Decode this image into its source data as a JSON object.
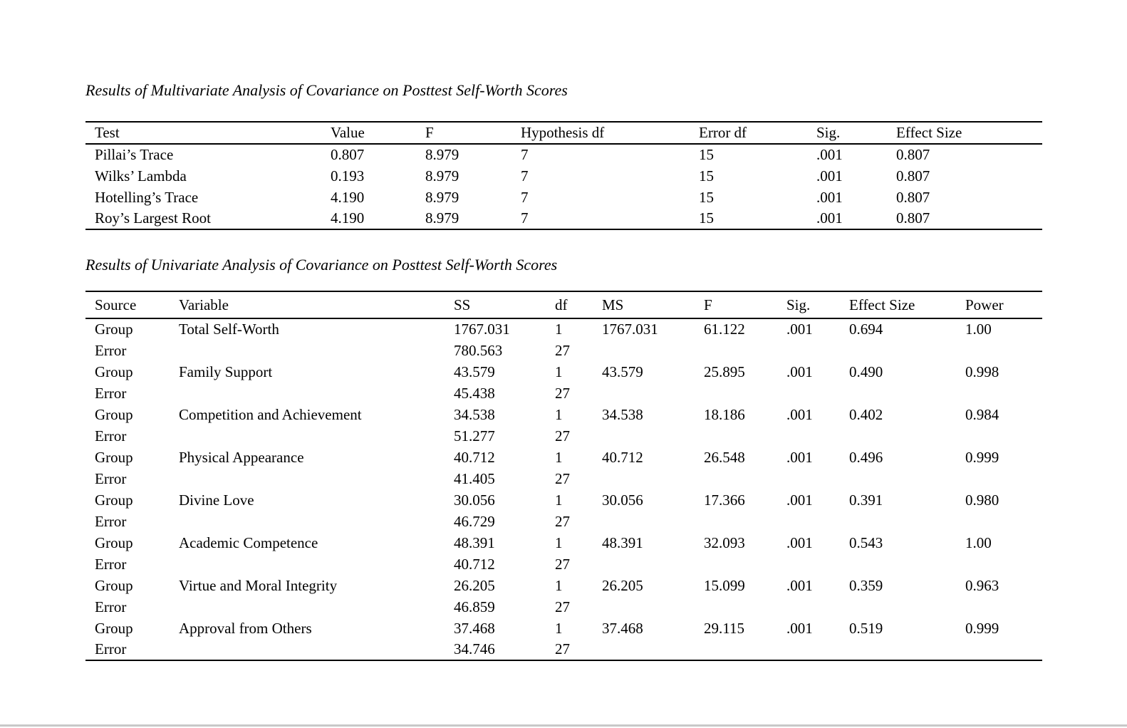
{
  "page": {
    "background_color": "#ffffff",
    "bottom_line_color": "#c8c8c8"
  },
  "multivariate_table": {
    "title": "Results of Multivariate Analysis of Covariance on Posttest Self-Worth Scores",
    "columns": [
      "Test",
      "Value",
      "F",
      "Hypothesis df",
      "Error df",
      "Sig.",
      "Effect Size"
    ],
    "rows": [
      [
        "Pillai’s Trace",
        "0.807",
        "8.979",
        "7",
        "15",
        ".001",
        "0.807"
      ],
      [
        "Wilks’ Lambda",
        "0.193",
        "8.979",
        "7",
        "15",
        ".001",
        "0.807"
      ],
      [
        "Hotelling’s Trace",
        "4.190",
        "8.979",
        "7",
        "15",
        ".001",
        "0.807"
      ],
      [
        "Roy’s Largest Root",
        "4.190",
        "8.979",
        "7",
        "15",
        ".001",
        "0.807"
      ]
    ]
  },
  "univariate_table": {
    "title": "Results of Univariate Analysis of Covariance on Posttest Self-Worth Scores",
    "columns": [
      "Source",
      "Variable",
      "SS",
      "df",
      "MS",
      "F",
      "Sig.",
      "Effect Size",
      "Power"
    ],
    "rows": [
      [
        "Group",
        "Total Self-Worth",
        "1767.031",
        "1",
        "1767.031",
        "61.122",
        ".001",
        "0.694",
        "1.00"
      ],
      [
        "Error",
        "",
        "780.563",
        "27",
        "",
        "",
        "",
        "",
        ""
      ],
      [
        "Group",
        "Family Support",
        "43.579",
        "1",
        "43.579",
        "25.895",
        ".001",
        "0.490",
        "0.998"
      ],
      [
        "Error",
        "",
        "45.438",
        "27",
        "",
        "",
        "",
        "",
        ""
      ],
      [
        "Group",
        "Competition and Achievement",
        "34.538",
        "1",
        "34.538",
        "18.186",
        ".001",
        "0.402",
        "0.984"
      ],
      [
        "Error",
        "",
        "51.277",
        "27",
        "",
        "",
        "",
        "",
        ""
      ],
      [
        "Group",
        "Physical Appearance",
        "40.712",
        "1",
        "40.712",
        "26.548",
        ".001",
        "0.496",
        "0.999"
      ],
      [
        "Error",
        "",
        "41.405",
        "27",
        "",
        "",
        "",
        "",
        ""
      ],
      [
        "Group",
        "Divine Love",
        "30.056",
        "1",
        "30.056",
        "17.366",
        ".001",
        "0.391",
        "0.980"
      ],
      [
        "Error",
        "",
        "46.729",
        "27",
        "",
        "",
        "",
        "",
        ""
      ],
      [
        "Group",
        "Academic Competence",
        "48.391",
        "1",
        "48.391",
        "32.093",
        ".001",
        "0.543",
        "1.00"
      ],
      [
        "Error",
        "",
        "40.712",
        "27",
        "",
        "",
        "",
        "",
        ""
      ],
      [
        "Group",
        "Virtue and Moral Integrity",
        "26.205",
        "1",
        "26.205",
        "15.099",
        ".001",
        "0.359",
        "0.963"
      ],
      [
        "Error",
        "",
        "46.859",
        "27",
        "",
        "",
        "",
        "",
        ""
      ],
      [
        "Group",
        "Approval from Others",
        "37.468",
        "1",
        "37.468",
        "29.115",
        ".001",
        "0.519",
        "0.999"
      ],
      [
        "Error",
        "",
        "34.746",
        "27",
        "",
        "",
        "",
        "",
        ""
      ]
    ]
  }
}
